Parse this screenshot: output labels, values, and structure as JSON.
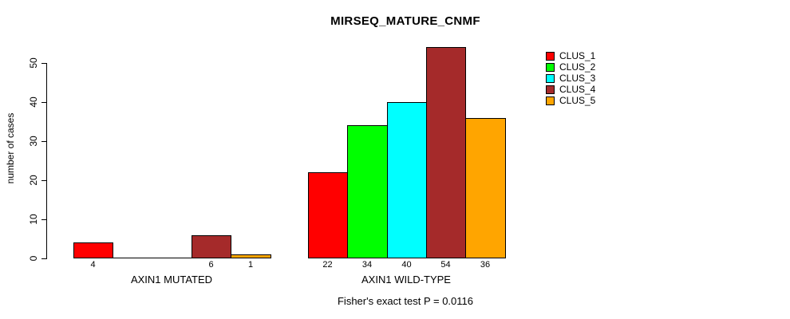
{
  "chart_data": {
    "type": "bar",
    "title": "MIRSEQ_MATURE_CNMF",
    "ylabel": "number of cases",
    "xlabel": "",
    "ylim": [
      0,
      50
    ],
    "yticks": [
      0,
      10,
      20,
      30,
      40,
      50
    ],
    "grid": false,
    "legend_position": "right",
    "categories": [
      "AXIN1 MUTATED",
      "AXIN1 WILD-TYPE"
    ],
    "series": [
      {
        "name": "CLUS_1",
        "color": "#ff0000",
        "values": [
          4,
          22
        ]
      },
      {
        "name": "CLUS_2",
        "color": "#00ff00",
        "values": [
          0,
          34
        ]
      },
      {
        "name": "CLUS_3",
        "color": "#00ffff",
        "values": [
          0,
          40
        ]
      },
      {
        "name": "CLUS_4",
        "color": "#a52a2a",
        "values": [
          6,
          54
        ]
      },
      {
        "name": "CLUS_5",
        "color": "#ffa500",
        "values": [
          1,
          36
        ]
      }
    ],
    "bar_value_labels": [
      [
        "4",
        "",
        "",
        "6",
        "1"
      ],
      [
        "22",
        "34",
        "40",
        "54",
        "36"
      ]
    ],
    "annotation": "Fisher's exact test P = 0.0116"
  }
}
